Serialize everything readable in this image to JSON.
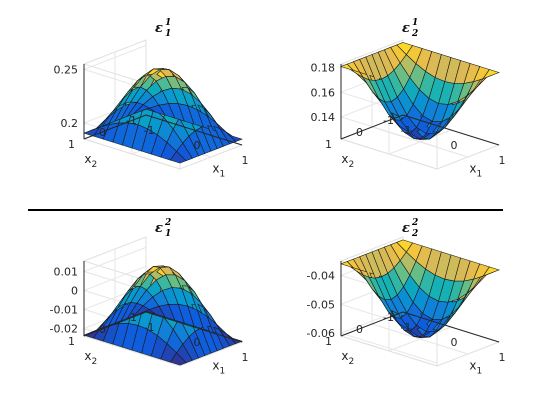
{
  "chart_data": [
    {
      "type": "surface",
      "title": "ε",
      "title_sup": "1",
      "title_sub": "1",
      "xlabel": "x",
      "xlabel_sub": "1",
      "ylabel": "x",
      "ylabel_sub": "2",
      "x_ticks": [
        "-1",
        "0",
        "1"
      ],
      "y_ticks": [
        "-1",
        "0",
        "1"
      ],
      "z_ticks": [
        {
          "v": 0.2,
          "t": "0.2"
        },
        {
          "v": 0.25,
          "t": "0.25"
        }
      ],
      "xlim": [
        -1,
        1
      ],
      "ylim": [
        -1,
        1
      ],
      "zlim": [
        0.185,
        0.255
      ],
      "surface": {
        "shape": "dome",
        "z_center": 0.2535,
        "z_corner": 0.1905
      }
    },
    {
      "type": "surface",
      "title": "ε",
      "title_sup": "1",
      "title_sub": "2",
      "xlabel": "x",
      "xlabel_sub": "1",
      "ylabel": "x",
      "ylabel_sub": "2",
      "x_ticks": [
        "-1",
        "0",
        "1"
      ],
      "y_ticks": [
        "-1",
        "0",
        "1"
      ],
      "z_ticks": [
        {
          "v": 0.14,
          "t": "0.14"
        },
        {
          "v": 0.16,
          "t": "0.16"
        },
        {
          "v": 0.18,
          "t": "0.18"
        }
      ],
      "xlim": [
        -1,
        1
      ],
      "ylim": [
        -1,
        1
      ],
      "zlim": [
        0.122,
        0.183
      ],
      "surface": {
        "shape": "bowl",
        "z_center": 0.124,
        "z_corner": 0.181
      }
    },
    {
      "type": "surface",
      "title": "ε",
      "title_sup": "2",
      "title_sub": "1",
      "xlabel": "x",
      "xlabel_sub": "1",
      "ylabel": "x",
      "ylabel_sub": "2",
      "x_ticks": [
        "-1",
        "0",
        "1"
      ],
      "y_ticks": [
        "-1",
        "0",
        "1"
      ],
      "z_ticks": [
        {
          "v": -0.02,
          "t": "-0.02"
        },
        {
          "v": -0.01,
          "t": "-0.01"
        },
        {
          "v": 0,
          "t": "0"
        },
        {
          "v": 0.01,
          "t": "0.01"
        }
      ],
      "xlim": [
        -1,
        1
      ],
      "ylim": [
        -1,
        1
      ],
      "zlim": [
        -0.024,
        0.0155
      ],
      "surface": {
        "shape": "dome",
        "z_center": 0.0145,
        "z_corner": -0.0235
      }
    },
    {
      "type": "surface",
      "title": "ε",
      "title_sup": "2",
      "title_sub": "2",
      "xlabel": "x",
      "xlabel_sub": "1",
      "ylabel": "x",
      "ylabel_sub": "2",
      "x_ticks": [
        "-1",
        "0",
        "1"
      ],
      "y_ticks": [
        "-1",
        "0",
        "1"
      ],
      "z_ticks": [
        {
          "v": -0.06,
          "t": "-0.06"
        },
        {
          "v": -0.05,
          "t": "-0.05"
        },
        {
          "v": -0.04,
          "t": "-0.04"
        }
      ],
      "xlim": [
        -1,
        1
      ],
      "ylim": [
        -1,
        1
      ],
      "zlim": [
        -0.061,
        -0.035
      ],
      "surface": {
        "shape": "bowl",
        "z_center": -0.0605,
        "z_corner": -0.036
      }
    }
  ],
  "colors": {
    "colormap": "parula",
    "edge": "#1a1a1a",
    "divider": "#000000",
    "axes": "#262626",
    "grid": "#e6e6e6"
  }
}
